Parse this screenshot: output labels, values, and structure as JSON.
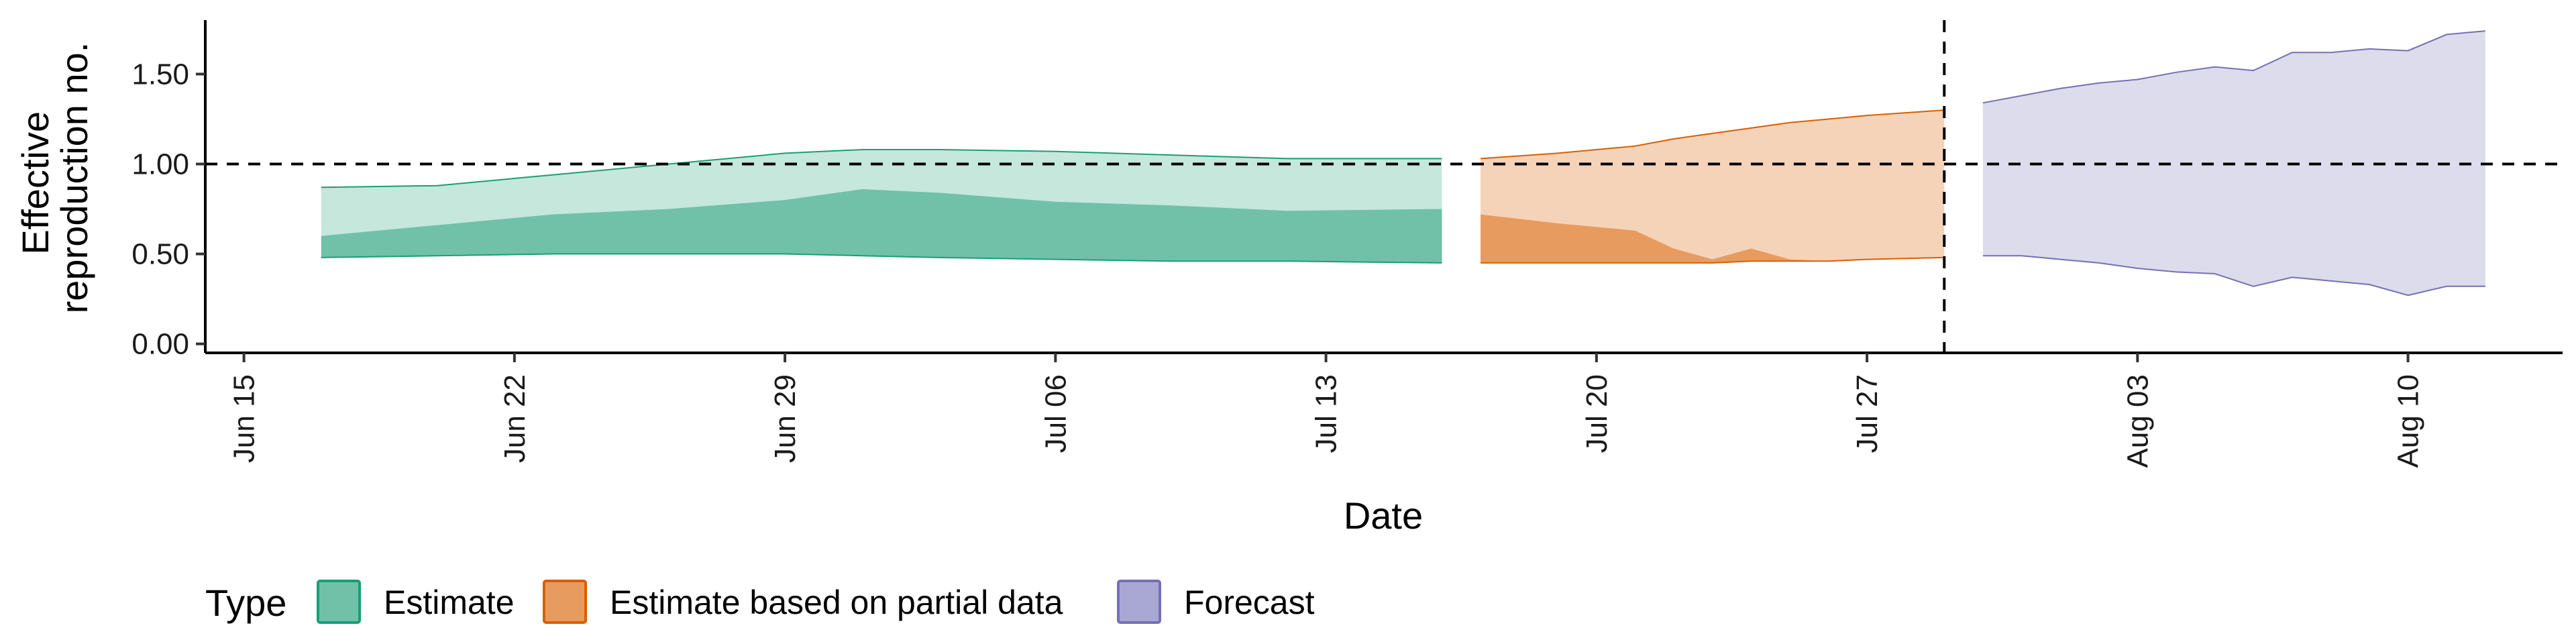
{
  "chart_data": {
    "type": "area",
    "title": "",
    "xlabel": "Date",
    "ylabel_lines": [
      "Effective",
      "reproduction no."
    ],
    "x_range": [
      "2020-06-14",
      "2020-08-14"
    ],
    "ylim": [
      -0.05,
      1.8
    ],
    "y_ticks": [
      0.0,
      0.5,
      1.0,
      1.5
    ],
    "y_tick_labels": [
      "0.00",
      "0.50",
      "1.00",
      "1.50"
    ],
    "x_ticks": [
      {
        "date": "2020-06-15",
        "label": "Jun 15"
      },
      {
        "date": "2020-06-22",
        "label": "Jun 22"
      },
      {
        "date": "2020-06-29",
        "label": "Jun 29"
      },
      {
        "date": "2020-07-06",
        "label": "Jul 06"
      },
      {
        "date": "2020-07-13",
        "label": "Jul 13"
      },
      {
        "date": "2020-07-20",
        "label": "Jul 20"
      },
      {
        "date": "2020-07-27",
        "label": "Jul 27"
      },
      {
        "date": "2020-08-03",
        "label": "Aug 03"
      },
      {
        "date": "2020-08-10",
        "label": "Aug 10"
      }
    ],
    "reference_lines": {
      "horizontal_y": 1.0,
      "vertical_date": "2020-07-29"
    },
    "grid": false,
    "legend": {
      "title": "Type",
      "position": "bottom",
      "items": [
        {
          "label": "Estimate",
          "fill": "#70c1a8",
          "stroke": "#1b9e77"
        },
        {
          "label": "Estimate based on partial data",
          "fill": "#e89b5f",
          "stroke": "#d95f02"
        },
        {
          "label": "Forecast",
          "fill": "#a9a7d4",
          "stroke": "#7570b3"
        }
      ]
    },
    "series": [
      {
        "name": "Estimate",
        "outer_fill": "#c5e7dc",
        "inner_fill": "#70c1a8",
        "stroke": "#1b9e77",
        "dates": [
          "2020-06-17",
          "2020-06-20",
          "2020-06-23",
          "2020-06-26",
          "2020-06-29",
          "2020-07-01",
          "2020-07-03",
          "2020-07-06",
          "2020-07-09",
          "2020-07-12",
          "2020-07-16"
        ],
        "lower_90": [
          0.48,
          0.49,
          0.5,
          0.5,
          0.5,
          0.49,
          0.48,
          0.47,
          0.46,
          0.46,
          0.45
        ],
        "upper_90": [
          0.87,
          0.88,
          0.94,
          1.0,
          1.06,
          1.08,
          1.08,
          1.07,
          1.05,
          1.03,
          1.03
        ],
        "lower_50": [
          0.48,
          0.49,
          0.5,
          0.5,
          0.5,
          0.49,
          0.48,
          0.47,
          0.46,
          0.46,
          0.45
        ],
        "upper_50": [
          0.6,
          0.66,
          0.72,
          0.75,
          0.8,
          0.86,
          0.84,
          0.79,
          0.77,
          0.74,
          0.75
        ]
      },
      {
        "name": "Estimate based on partial data",
        "outer_fill": "#f5d3b8",
        "inner_fill": "#e89b5f",
        "stroke": "#d95f02",
        "dates": [
          "2020-07-17",
          "2020-07-19",
          "2020-07-21",
          "2020-07-22",
          "2020-07-23",
          "2020-07-24",
          "2020-07-25",
          "2020-07-26",
          "2020-07-27",
          "2020-07-29"
        ],
        "lower_90": [
          0.45,
          0.45,
          0.45,
          0.45,
          0.45,
          0.46,
          0.46,
          0.46,
          0.47,
          0.48
        ],
        "upper_90": [
          1.03,
          1.06,
          1.1,
          1.14,
          1.17,
          1.2,
          1.23,
          1.25,
          1.27,
          1.3
        ],
        "lower_50": [
          0.45,
          0.45,
          0.45,
          0.45,
          0.45,
          0.46,
          0.46,
          0.46,
          0.47,
          0.48
        ],
        "upper_50": [
          0.72,
          0.67,
          0.63,
          0.53,
          0.47,
          0.53,
          0.47,
          0.46,
          0.47,
          0.48
        ]
      },
      {
        "name": "Forecast",
        "outer_fill": "#dcdcec",
        "inner_fill": "#a9a7d4",
        "stroke": "#7570b3",
        "dates": [
          "2020-07-30",
          "2020-07-31",
          "2020-08-01",
          "2020-08-02",
          "2020-08-03",
          "2020-08-04",
          "2020-08-05",
          "2020-08-06",
          "2020-08-07",
          "2020-08-08",
          "2020-08-09",
          "2020-08-10",
          "2020-08-11",
          "2020-08-12"
        ],
        "lower_90": [
          0.49,
          0.49,
          0.47,
          0.45,
          0.42,
          0.4,
          0.39,
          0.32,
          0.37,
          0.35,
          0.33,
          0.27,
          0.32,
          0.32
        ],
        "upper_90": [
          1.34,
          1.38,
          1.42,
          1.45,
          1.47,
          1.51,
          1.54,
          1.52,
          1.62,
          1.62,
          1.64,
          1.63,
          1.72,
          1.74
        ]
      }
    ]
  }
}
